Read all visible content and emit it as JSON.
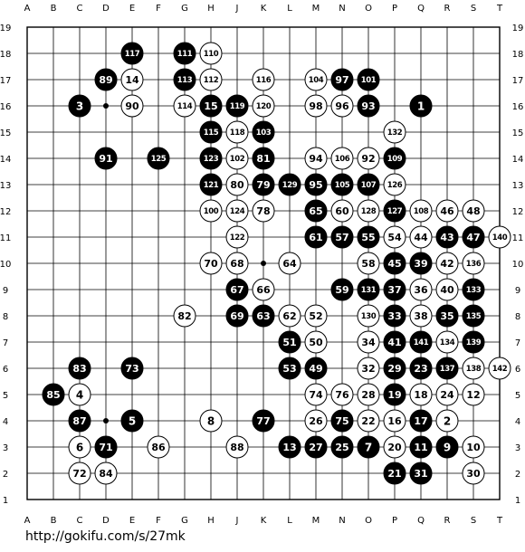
{
  "board": {
    "size": 19,
    "column_labels": [
      "A",
      "B",
      "C",
      "D",
      "E",
      "F",
      "G",
      "H",
      "J",
      "K",
      "L",
      "M",
      "N",
      "O",
      "P",
      "Q",
      "R",
      "S",
      "T"
    ],
    "row_labels": [
      "19",
      "18",
      "17",
      "16",
      "15",
      "14",
      "13",
      "12",
      "11",
      "10",
      "9",
      "8",
      "7",
      "6",
      "5",
      "4",
      "3",
      "2",
      "1"
    ],
    "colors": {
      "black": "#000000",
      "white": "#ffffff",
      "line": "#000000",
      "background": "#ffffff"
    },
    "star_points": [
      "D16",
      "K10",
      "D4"
    ],
    "stones": [
      {
        "color": "black",
        "label": "117",
        "point": "E18"
      },
      {
        "color": "black",
        "label": "111",
        "point": "G18"
      },
      {
        "color": "white",
        "label": "110",
        "point": "H18"
      },
      {
        "color": "black",
        "label": "89",
        "point": "D17"
      },
      {
        "color": "white",
        "label": "14",
        "point": "E17"
      },
      {
        "color": "black",
        "label": "113",
        "point": "G17"
      },
      {
        "color": "white",
        "label": "112",
        "point": "H17"
      },
      {
        "color": "white",
        "label": "116",
        "point": "K17"
      },
      {
        "color": "white",
        "label": "104",
        "point": "M17"
      },
      {
        "color": "black",
        "label": "97",
        "point": "N17"
      },
      {
        "color": "black",
        "label": "101",
        "point": "O17"
      },
      {
        "color": "black",
        "label": "3",
        "point": "C16"
      },
      {
        "color": "white",
        "label": "90",
        "point": "E16"
      },
      {
        "color": "white",
        "label": "114",
        "point": "G16"
      },
      {
        "color": "black",
        "label": "15",
        "point": "H16"
      },
      {
        "color": "black",
        "label": "119",
        "point": "J16"
      },
      {
        "color": "white",
        "label": "120",
        "point": "K16"
      },
      {
        "color": "white",
        "label": "98",
        "point": "M16"
      },
      {
        "color": "white",
        "label": "96",
        "point": "N16"
      },
      {
        "color": "black",
        "label": "93",
        "point": "O16"
      },
      {
        "color": "black",
        "label": "1",
        "point": "Q16"
      },
      {
        "color": "black",
        "label": "115",
        "point": "H15"
      },
      {
        "color": "white",
        "label": "118",
        "point": "J15"
      },
      {
        "color": "black",
        "label": "103",
        "point": "K15"
      },
      {
        "color": "white",
        "label": "132",
        "point": "P15"
      },
      {
        "color": "black",
        "label": "91",
        "point": "D14"
      },
      {
        "color": "black",
        "label": "125",
        "point": "F14"
      },
      {
        "color": "black",
        "label": "123",
        "point": "H14"
      },
      {
        "color": "white",
        "label": "102",
        "point": "J14"
      },
      {
        "color": "black",
        "label": "81",
        "point": "K14"
      },
      {
        "color": "white",
        "label": "94",
        "point": "M14"
      },
      {
        "color": "white",
        "label": "106",
        "point": "N14"
      },
      {
        "color": "white",
        "label": "92",
        "point": "O14"
      },
      {
        "color": "black",
        "label": "109",
        "point": "P14"
      },
      {
        "color": "black",
        "label": "121",
        "point": "H13"
      },
      {
        "color": "white",
        "label": "80",
        "point": "J13"
      },
      {
        "color": "black",
        "label": "79",
        "point": "K13"
      },
      {
        "color": "black",
        "label": "129",
        "point": "L13"
      },
      {
        "color": "black",
        "label": "95",
        "point": "M13"
      },
      {
        "color": "black",
        "label": "105",
        "point": "N13"
      },
      {
        "color": "black",
        "label": "107",
        "point": "O13"
      },
      {
        "color": "white",
        "label": "126",
        "point": "P13"
      },
      {
        "color": "white",
        "label": "100",
        "point": "H12"
      },
      {
        "color": "white",
        "label": "124",
        "point": "J12"
      },
      {
        "color": "white",
        "label": "78",
        "point": "K12"
      },
      {
        "color": "black",
        "label": "65",
        "point": "M12"
      },
      {
        "color": "white",
        "label": "60",
        "point": "N12"
      },
      {
        "color": "white",
        "label": "128",
        "point": "O12"
      },
      {
        "color": "black",
        "label": "127",
        "point": "P12"
      },
      {
        "color": "white",
        "label": "108",
        "point": "Q12"
      },
      {
        "color": "white",
        "label": "46",
        "point": "R12"
      },
      {
        "color": "white",
        "label": "48",
        "point": "S12"
      },
      {
        "color": "white",
        "label": "122",
        "point": "J11"
      },
      {
        "color": "black",
        "label": "61",
        "point": "M11"
      },
      {
        "color": "black",
        "label": "57",
        "point": "N11"
      },
      {
        "color": "black",
        "label": "55",
        "point": "O11"
      },
      {
        "color": "white",
        "label": "54",
        "point": "P11"
      },
      {
        "color": "white",
        "label": "44",
        "point": "Q11"
      },
      {
        "color": "black",
        "label": "43",
        "point": "R11"
      },
      {
        "color": "black",
        "label": "47",
        "point": "S11"
      },
      {
        "color": "white",
        "label": "140",
        "point": "T11"
      },
      {
        "color": "white",
        "label": "70",
        "point": "H10"
      },
      {
        "color": "white",
        "label": "68",
        "point": "J10"
      },
      {
        "color": "white",
        "label": "64",
        "point": "L10"
      },
      {
        "color": "white",
        "label": "58",
        "point": "O10"
      },
      {
        "color": "black",
        "label": "45",
        "point": "P10"
      },
      {
        "color": "black",
        "label": "39",
        "point": "Q10"
      },
      {
        "color": "white",
        "label": "42",
        "point": "R10"
      },
      {
        "color": "white",
        "label": "136",
        "point": "S10"
      },
      {
        "color": "black",
        "label": "67",
        "point": "J9"
      },
      {
        "color": "white",
        "label": "66",
        "point": "K9"
      },
      {
        "color": "black",
        "label": "59",
        "point": "N9"
      },
      {
        "color": "black",
        "label": "131",
        "point": "O9"
      },
      {
        "color": "black",
        "label": "37",
        "point": "P9"
      },
      {
        "color": "white",
        "label": "36",
        "point": "Q9"
      },
      {
        "color": "white",
        "label": "40",
        "point": "R9"
      },
      {
        "color": "black",
        "label": "133",
        "point": "S9"
      },
      {
        "color": "white",
        "label": "82",
        "point": "G8"
      },
      {
        "color": "black",
        "label": "69",
        "point": "J8"
      },
      {
        "color": "black",
        "label": "63",
        "point": "K8"
      },
      {
        "color": "white",
        "label": "62",
        "point": "L8"
      },
      {
        "color": "white",
        "label": "52",
        "point": "M8"
      },
      {
        "color": "white",
        "label": "130",
        "point": "O8"
      },
      {
        "color": "black",
        "label": "33",
        "point": "P8"
      },
      {
        "color": "white",
        "label": "38",
        "point": "Q8"
      },
      {
        "color": "black",
        "label": "35",
        "point": "R8"
      },
      {
        "color": "black",
        "label": "135",
        "point": "S8"
      },
      {
        "color": "black",
        "label": "51",
        "point": "L7"
      },
      {
        "color": "white",
        "label": "50",
        "point": "M7"
      },
      {
        "color": "white",
        "label": "34",
        "point": "O7"
      },
      {
        "color": "black",
        "label": "41",
        "point": "P7"
      },
      {
        "color": "black",
        "label": "141",
        "point": "Q7"
      },
      {
        "color": "white",
        "label": "134",
        "point": "R7"
      },
      {
        "color": "black",
        "label": "139",
        "point": "S7"
      },
      {
        "color": "black",
        "label": "83",
        "point": "C6"
      },
      {
        "color": "black",
        "label": "73",
        "point": "E6"
      },
      {
        "color": "black",
        "label": "53",
        "point": "L6"
      },
      {
        "color": "black",
        "label": "49",
        "point": "M6"
      },
      {
        "color": "white",
        "label": "32",
        "point": "O6"
      },
      {
        "color": "black",
        "label": "29",
        "point": "P6"
      },
      {
        "color": "black",
        "label": "23",
        "point": "Q6"
      },
      {
        "color": "black",
        "label": "137",
        "point": "R6"
      },
      {
        "color": "white",
        "label": "138",
        "point": "S6"
      },
      {
        "color": "white",
        "label": "142",
        "point": "T6"
      },
      {
        "color": "black",
        "label": "85",
        "point": "B5"
      },
      {
        "color": "white",
        "label": "4",
        "point": "C5"
      },
      {
        "color": "white",
        "label": "74",
        "point": "M5"
      },
      {
        "color": "white",
        "label": "76",
        "point": "N5"
      },
      {
        "color": "white",
        "label": "28",
        "point": "O5"
      },
      {
        "color": "black",
        "label": "19",
        "point": "P5"
      },
      {
        "color": "white",
        "label": "18",
        "point": "Q5"
      },
      {
        "color": "white",
        "label": "24",
        "point": "R5"
      },
      {
        "color": "white",
        "label": "12",
        "point": "S5"
      },
      {
        "color": "black",
        "label": "87",
        "point": "C4"
      },
      {
        "color": "black",
        "label": "5",
        "point": "E4"
      },
      {
        "color": "white",
        "label": "8",
        "point": "H4"
      },
      {
        "color": "black",
        "label": "77",
        "point": "K4"
      },
      {
        "color": "white",
        "label": "26",
        "point": "M4"
      },
      {
        "color": "black",
        "label": "75",
        "point": "N4"
      },
      {
        "color": "white",
        "label": "22",
        "point": "O4"
      },
      {
        "color": "white",
        "label": "16",
        "point": "P4"
      },
      {
        "color": "black",
        "label": "17",
        "point": "Q4"
      },
      {
        "color": "white",
        "label": "2",
        "point": "R4"
      },
      {
        "color": "white",
        "label": "6",
        "point": "C3"
      },
      {
        "color": "black",
        "label": "71",
        "point": "D3"
      },
      {
        "color": "white",
        "label": "86",
        "point": "F3"
      },
      {
        "color": "white",
        "label": "88",
        "point": "J3"
      },
      {
        "color": "black",
        "label": "13",
        "point": "L3"
      },
      {
        "color": "black",
        "label": "27",
        "point": "M3"
      },
      {
        "color": "black",
        "label": "25",
        "point": "N3"
      },
      {
        "color": "black",
        "label": "7",
        "point": "O3"
      },
      {
        "color": "white",
        "label": "20",
        "point": "P3"
      },
      {
        "color": "black",
        "label": "11",
        "point": "Q3"
      },
      {
        "color": "black",
        "label": "9",
        "point": "R3"
      },
      {
        "color": "white",
        "label": "10",
        "point": "S3"
      },
      {
        "color": "white",
        "label": "72",
        "point": "C2"
      },
      {
        "color": "white",
        "label": "84",
        "point": "D2"
      },
      {
        "color": "black",
        "label": "21",
        "point": "P2"
      },
      {
        "color": "black",
        "label": "31",
        "point": "Q2"
      },
      {
        "color": "white",
        "label": "30",
        "point": "S2"
      }
    ]
  },
  "footer": {
    "source_url": "http://gokifu.com/s/27mk"
  }
}
